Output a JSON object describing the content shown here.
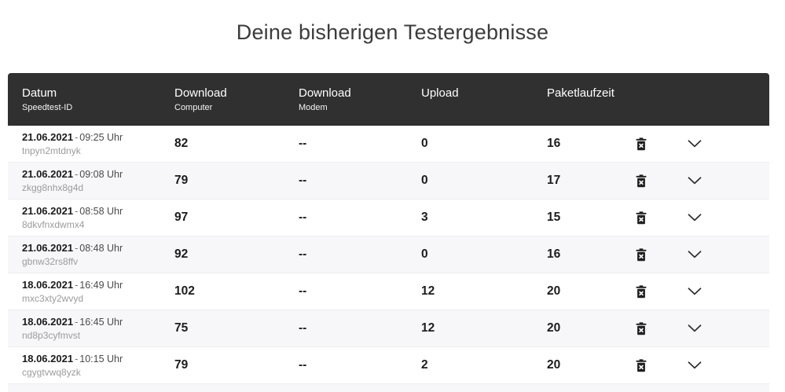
{
  "page": {
    "title": "Deine bisherigen Testergebnisse"
  },
  "table": {
    "columns": [
      {
        "label": "Datum",
        "sublabel": "Speedtest-ID"
      },
      {
        "label": "Download",
        "sublabel": "Computer"
      },
      {
        "label": "Download",
        "sublabel": "Modem"
      },
      {
        "label": "Upload",
        "sublabel": ""
      },
      {
        "label": "Paketlaufzeit",
        "sublabel": ""
      }
    ],
    "date_separator": "-",
    "rows": [
      {
        "date": "21.06.2021",
        "time": "09:25 Uhr",
        "id": "tnpyn2mtdnyk",
        "download_computer": "82",
        "download_modem": "--",
        "upload": "0",
        "paketlaufzeit": "16"
      },
      {
        "date": "21.06.2021",
        "time": "09:08 Uhr",
        "id": "zkgg8nhx8g4d",
        "download_computer": "79",
        "download_modem": "--",
        "upload": "0",
        "paketlaufzeit": "17"
      },
      {
        "date": "21.06.2021",
        "time": "08:58 Uhr",
        "id": "8dkvfnxdwmx4",
        "download_computer": "97",
        "download_modem": "--",
        "upload": "3",
        "paketlaufzeit": "15"
      },
      {
        "date": "21.06.2021",
        "time": "08:48 Uhr",
        "id": "gbnw32rs8ffv",
        "download_computer": "92",
        "download_modem": "--",
        "upload": "0",
        "paketlaufzeit": "16"
      },
      {
        "date": "18.06.2021",
        "time": "16:49 Uhr",
        "id": "mxc3xty2wvyd",
        "download_computer": "102",
        "download_modem": "--",
        "upload": "12",
        "paketlaufzeit": "20"
      },
      {
        "date": "18.06.2021",
        "time": "16:45 Uhr",
        "id": "nd8p3cyfmvst",
        "download_computer": "75",
        "download_modem": "--",
        "upload": "12",
        "paketlaufzeit": "20"
      },
      {
        "date": "18.06.2021",
        "time": "10:15 Uhr",
        "id": "cgygtvwq8yzk",
        "download_computer": "79",
        "download_modem": "--",
        "upload": "2",
        "paketlaufzeit": "20"
      }
    ],
    "icons": {
      "delete": "trash-x-icon",
      "expand": "chevron-down-icon"
    },
    "colors": {
      "header_bg": "#303030",
      "header_text": "#ffffff",
      "row_bg": "#ffffff",
      "row_stripe_bg": "#f7f7f9",
      "accent_text": "#1c1c1c"
    }
  }
}
